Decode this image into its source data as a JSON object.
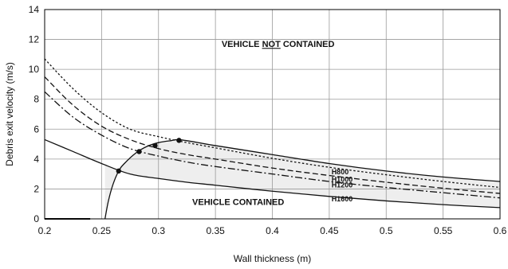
{
  "chart_data": {
    "type": "line",
    "xlabel": "Wall thickness (m)",
    "ylabel": "Debris exit velocity (m/s)",
    "xlim": [
      0.2,
      0.6
    ],
    "ylim": [
      0,
      14
    ],
    "x_ticks": [
      0.2,
      0.25,
      0.3,
      0.35,
      0.4,
      0.45,
      0.5,
      0.55,
      0.6
    ],
    "x_tick_labels": [
      "0.2",
      "0.25",
      "0.3",
      "0.35",
      "0.4",
      "0.45",
      "0.5",
      "0.55",
      "0.6"
    ],
    "y_ticks": [
      0,
      2,
      4,
      6,
      8,
      10,
      12,
      14
    ],
    "y_tick_labels": [
      "0",
      "2",
      "4",
      "6",
      "8",
      "10",
      "12",
      "14"
    ],
    "grid": true,
    "annotations": {
      "not_contained_pre": "VEHICLE ",
      "not_contained_em": "NOT",
      "not_contained_post": " CONTAINED",
      "contained": "VEHICLE CONTAINED"
    },
    "series": [
      {
        "name": "H800",
        "style": "dotted",
        "x": [
          0.2,
          0.225,
          0.25,
          0.275,
          0.3,
          0.325,
          0.35,
          0.4,
          0.45,
          0.5,
          0.55,
          0.6
        ],
        "y": [
          10.7,
          8.7,
          7.1,
          6.0,
          5.5,
          5.1,
          4.75,
          4.05,
          3.45,
          2.95,
          2.5,
          2.1
        ]
      },
      {
        "name": "H1000",
        "style": "dashed",
        "x": [
          0.2,
          0.225,
          0.25,
          0.275,
          0.3,
          0.325,
          0.35,
          0.4,
          0.45,
          0.5,
          0.55,
          0.6
        ],
        "y": [
          9.5,
          7.6,
          6.2,
          5.3,
          4.7,
          4.3,
          4.0,
          3.4,
          2.9,
          2.45,
          2.05,
          1.7
        ]
      },
      {
        "name": "H1200",
        "style": "dashdot",
        "x": [
          0.2,
          0.225,
          0.25,
          0.275,
          0.3,
          0.325,
          0.35,
          0.4,
          0.45,
          0.5,
          0.55,
          0.6
        ],
        "y": [
          8.5,
          6.8,
          5.6,
          4.7,
          4.2,
          3.8,
          3.5,
          3.0,
          2.5,
          2.1,
          1.75,
          1.4
        ]
      },
      {
        "name": "H1600",
        "style": "solid",
        "x": [
          0.2,
          0.225,
          0.25,
          0.275,
          0.3,
          0.325,
          0.35,
          0.4,
          0.45,
          0.5,
          0.55,
          0.6
        ],
        "y": [
          5.3,
          4.5,
          3.7,
          3.0,
          2.7,
          2.45,
          2.25,
          1.85,
          1.5,
          1.2,
          0.95,
          0.75
        ]
      }
    ],
    "boundary": {
      "x": [
        0.253,
        0.256,
        0.26,
        0.265,
        0.27,
        0.28,
        0.29,
        0.3,
        0.31,
        0.32,
        0.35,
        0.4,
        0.45,
        0.5,
        0.55,
        0.6
      ],
      "y": [
        0,
        1.2,
        2.3,
        3.2,
        3.7,
        4.4,
        4.85,
        5.1,
        5.22,
        5.28,
        4.9,
        4.3,
        3.7,
        3.2,
        2.8,
        2.5
      ]
    },
    "intersections": {
      "x": [
        0.265,
        0.283,
        0.297,
        0.318
      ],
      "y": [
        3.2,
        4.5,
        4.9,
        5.25
      ]
    },
    "base_segment": {
      "x": [
        0.2,
        0.24
      ],
      "y": [
        0,
        0
      ]
    }
  }
}
